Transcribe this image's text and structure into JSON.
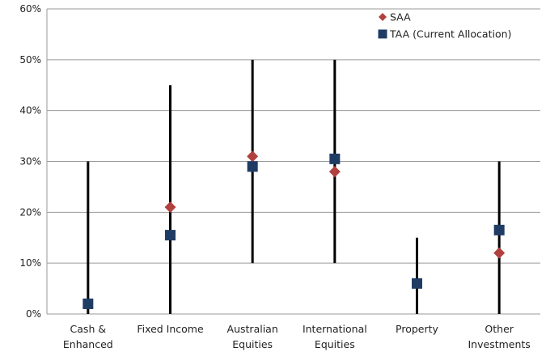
{
  "chart_data": {
    "type": "scatter",
    "categories": [
      [
        "Cash &",
        "Enhanced"
      ],
      [
        "Fixed Income"
      ],
      [
        "Australian",
        "Equities"
      ],
      [
        "International",
        "Equities"
      ],
      [
        "Property"
      ],
      [
        "Other",
        "Investments"
      ]
    ],
    "ranges": [
      {
        "min": 0,
        "max": 30
      },
      {
        "min": 0,
        "max": 45
      },
      {
        "min": 10,
        "max": 50
      },
      {
        "min": 10,
        "max": 50
      },
      {
        "min": 0,
        "max": 15
      },
      {
        "min": 0,
        "max": 30
      }
    ],
    "series": [
      {
        "name": "SAA",
        "marker": "diamond",
        "color": "#b0413e",
        "values": [
          null,
          21,
          31,
          28,
          null,
          12
        ]
      },
      {
        "name": "TAA (Current Allocation)",
        "marker": "square",
        "color": "#1f3c64",
        "values": [
          2,
          15.5,
          29,
          30.5,
          6,
          16.5
        ]
      }
    ],
    "ylim": [
      0,
      60
    ],
    "yticks": [
      0,
      10,
      20,
      30,
      40,
      50,
      60
    ],
    "ytick_suffix": "%",
    "grid": true,
    "legend_position": "top-right",
    "range_line_color": "#000000",
    "grid_color": "#9a9a9a"
  }
}
